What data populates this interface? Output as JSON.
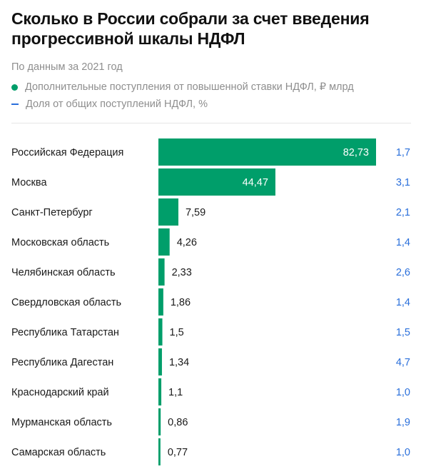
{
  "title": "Сколько в России собрали за счет введения прогрессивной шкалы НДФЛ",
  "subtitle": "По данным за 2021 год",
  "colors": {
    "bar": "#009e6a",
    "share": "#2a6fdb",
    "muted": "#8e8e8e"
  },
  "legend": [
    {
      "marker": "dot",
      "label": "Дополнительные поступления от повышенной ставки НДФЛ, ₽ млрд"
    },
    {
      "marker": "dash",
      "label": "Доля от общих поступлений НДФЛ, %"
    }
  ],
  "chart_data": {
    "type": "bar",
    "orientation": "horizontal",
    "categories": [
      "Российская Федерация",
      "Москва",
      "Санкт-Петербург",
      "Московская область",
      "Челябинская область",
      "Свердловская область",
      "Республика Татарстан",
      "Республика Дагестан",
      "Краснодарский край",
      "Мурманская область",
      "Самарская область"
    ],
    "series": [
      {
        "name": "Дополнительные поступления от повышенной ставки НДФЛ, ₽ млрд",
        "values": [
          82.73,
          44.47,
          7.59,
          4.26,
          2.33,
          1.86,
          1.5,
          1.34,
          1.1,
          0.86,
          0.77
        ],
        "labels": [
          "82,73",
          "44,47",
          "7,59",
          "4,26",
          "2,33",
          "1,86",
          "1,5",
          "1,34",
          "1,1",
          "0,86",
          "0,77"
        ]
      },
      {
        "name": "Доля от общих поступлений НДФЛ, %",
        "values": [
          1.7,
          3.1,
          2.1,
          1.4,
          2.6,
          1.4,
          1.5,
          4.7,
          1.0,
          1.9,
          1.0
        ],
        "labels": [
          "1,7",
          "3,1",
          "2,1",
          "1,4",
          "2,6",
          "1,4",
          "1,5",
          "4,7",
          "1,0",
          "1,9",
          "1,0"
        ]
      }
    ],
    "xlim": [
      0,
      82.73
    ],
    "grid": false,
    "legend_position": "top-left"
  }
}
